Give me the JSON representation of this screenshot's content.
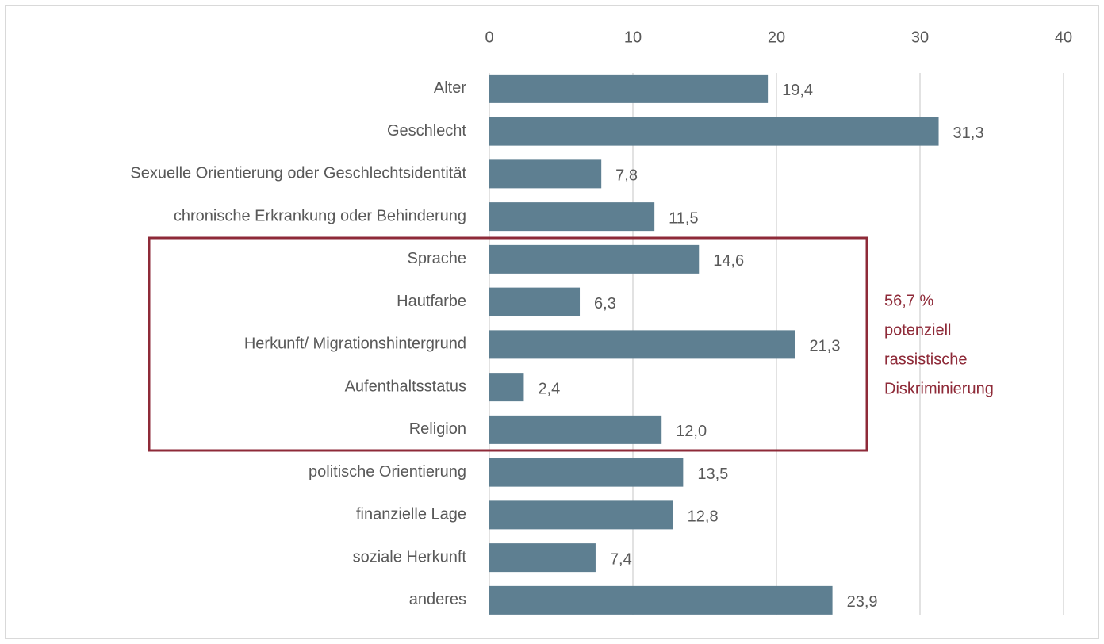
{
  "chart_data": {
    "type": "bar",
    "orientation": "horizontal",
    "categories": [
      "Alter",
      "Geschlecht",
      "Sexuelle Orientierung oder Geschlechtsidentität",
      "chronische Erkrankung oder Behinderung",
      "Sprache",
      "Hautfarbe",
      "Herkunft/ Migrationshintergrund",
      "Aufenthaltsstatus",
      "Religion",
      "politische Orientierung",
      "finanzielle Lage",
      "soziale Herkunft",
      "anderes"
    ],
    "values": [
      19.4,
      31.3,
      7.8,
      11.5,
      14.6,
      6.3,
      21.3,
      2.4,
      12.0,
      13.5,
      12.8,
      7.4,
      23.9
    ],
    "value_labels": [
      "19,4",
      "31,3",
      "7,8",
      "11,5",
      "14,6",
      "6,3",
      "21,3",
      "2,4",
      "12,0",
      "13,5",
      "12,8",
      "7,4",
      "23,9"
    ],
    "color": "#5e7f91",
    "xlim": [
      0,
      40
    ],
    "xticks": [
      0,
      10,
      20,
      30,
      40
    ],
    "grid": true,
    "annotation": {
      "lines": [
        "56,7 %",
        "potenziell",
        "rassistische",
        "Diskriminierung"
      ],
      "color": "#8e2a38"
    }
  }
}
